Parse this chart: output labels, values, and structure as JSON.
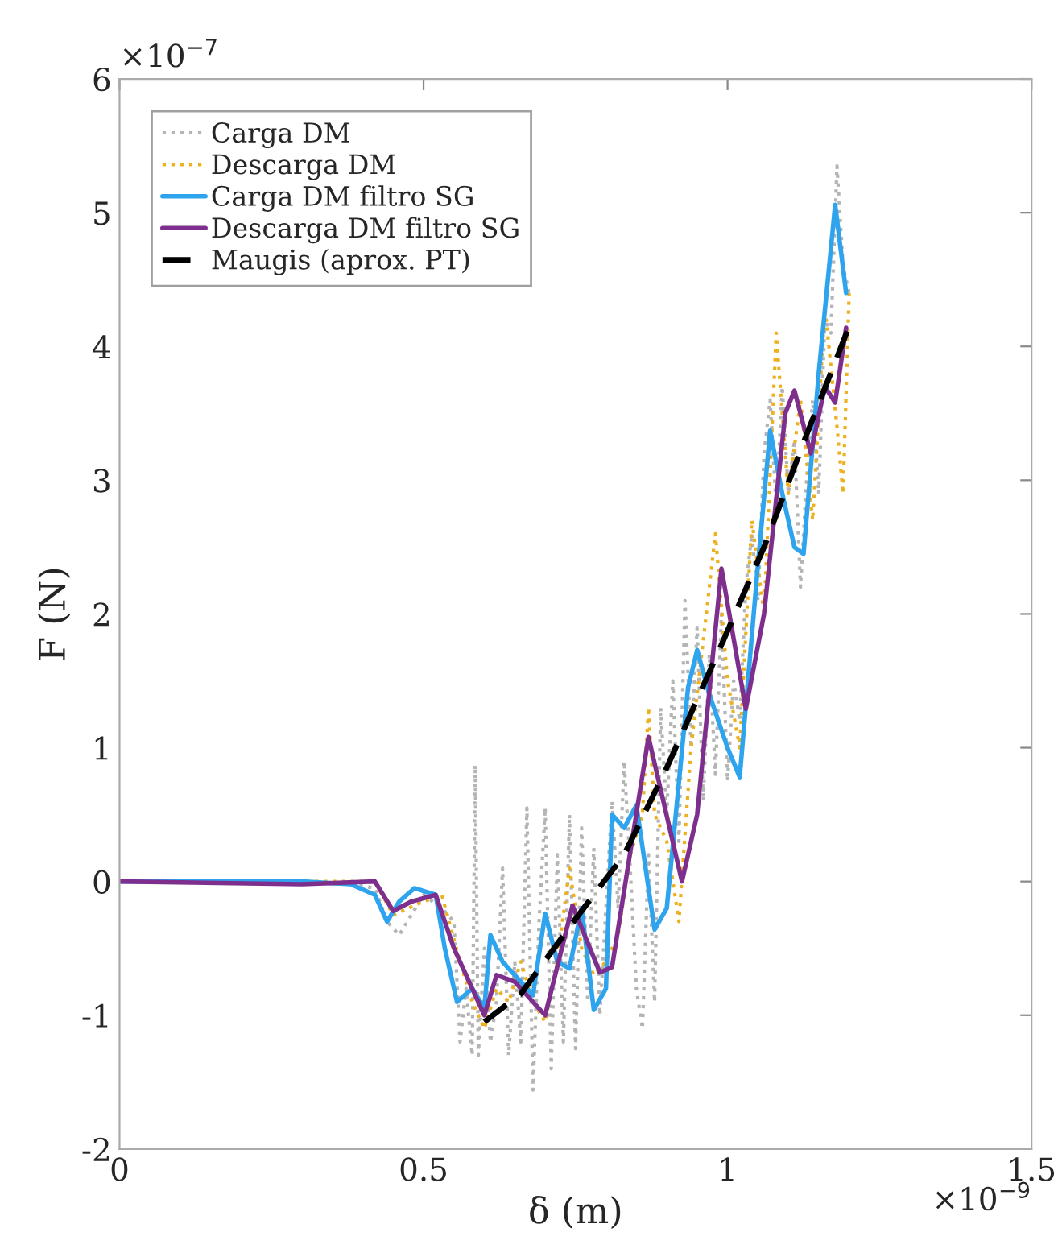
{
  "chart_data": {
    "type": "line",
    "xlabel": "δ (m)",
    "ylabel": "F (N)",
    "xlim": [
      0,
      1.5
    ],
    "xticks": [
      0,
      0.5,
      1,
      1.5
    ],
    "ylim": [
      -2,
      6
    ],
    "yticks": [
      -2,
      -1,
      0,
      1,
      2,
      3,
      4,
      5,
      6
    ],
    "grid": false,
    "legend": "top left",
    "marker": "none",
    "annotations": [
      "×10$^{−7}$",
      "×10$^{−9}$"
    ],
    "series": [
      {
        "name": "Carga DM",
        "color": "#b4b4b4",
        "line_style": "dotted",
        "x": [
          0,
          0.3,
          0.38,
          0.42,
          0.44,
          0.46,
          0.5,
          0.53,
          0.55,
          0.56,
          0.57,
          0.58,
          0.585,
          0.59,
          0.6,
          0.61,
          0.62,
          0.63,
          0.64,
          0.65,
          0.66,
          0.67,
          0.68,
          0.69,
          0.7,
          0.71,
          0.72,
          0.73,
          0.74,
          0.75,
          0.76,
          0.77,
          0.78,
          0.79,
          0.8,
          0.81,
          0.82,
          0.83,
          0.84,
          0.85,
          0.86,
          0.87,
          0.88,
          0.89,
          0.9,
          0.91,
          0.92,
          0.93,
          0.94,
          0.95,
          0.96,
          0.97,
          0.98,
          0.99,
          1.0,
          1.01,
          1.02,
          1.03,
          1.04,
          1.05,
          1.06,
          1.07,
          1.08,
          1.09,
          1.1,
          1.11,
          1.12,
          1.13,
          1.14,
          1.15,
          1.16,
          1.17,
          1.18,
          1.19,
          1.2
        ],
        "values": [
          0,
          0,
          -0.02,
          -0.05,
          -0.3,
          -0.4,
          -0.1,
          -0.2,
          -0.3,
          -1.2,
          -0.8,
          -1.3,
          0.87,
          -1.3,
          -0.5,
          -1.2,
          -0.9,
          0.1,
          -1.3,
          -0.6,
          -1.2,
          0.55,
          -1.56,
          -0.3,
          0.55,
          -1.4,
          0.2,
          -1.2,
          0.5,
          -1.25,
          0.4,
          -0.9,
          0.25,
          -1.0,
          -0.2,
          0.6,
          -0.2,
          0.9,
          0.1,
          -0.8,
          -1.1,
          0.2,
          -0.9,
          1.3,
          0.5,
          1.5,
          0.3,
          2.1,
          1.0,
          1.9,
          0.6,
          1.7,
          0.8,
          2.0,
          0.75,
          1.5,
          1.2,
          2.2,
          2.6,
          2.1,
          3.2,
          3.6,
          2.8,
          3.7,
          2.9,
          3.3,
          2.2,
          3.0,
          3.6,
          2.9,
          4.2,
          4.1,
          5.35,
          4.6,
          4.4
        ]
      },
      {
        "name": "Descarga DM",
        "color": "#edb120",
        "line_style": "dotted",
        "x": [
          0,
          0.42,
          0.45,
          0.5,
          0.53,
          0.56,
          0.58,
          0.6,
          0.62,
          0.64,
          0.66,
          0.68,
          0.7,
          0.72,
          0.74,
          0.76,
          0.78,
          0.8,
          0.82,
          0.84,
          0.86,
          0.87,
          0.88,
          0.9,
          0.92,
          0.94,
          0.96,
          0.98,
          1.0,
          1.02,
          1.04,
          1.06,
          1.08,
          1.1,
          1.12,
          1.14,
          1.16,
          1.18,
          1.19,
          1.2
        ],
        "values": [
          0,
          0,
          -0.25,
          -0.15,
          -0.1,
          -0.6,
          -0.9,
          -1.1,
          -0.8,
          -0.9,
          -0.6,
          -0.9,
          -1.05,
          -0.6,
          0.1,
          -0.5,
          -0.7,
          -0.6,
          -0.4,
          0.2,
          0.5,
          1.3,
          0.5,
          0.3,
          -0.3,
          1.0,
          1.8,
          2.6,
          1.5,
          1.0,
          2.7,
          2.0,
          4.1,
          2.9,
          3.6,
          2.7,
          4.3,
          3.4,
          2.9,
          4.4
        ]
      },
      {
        "name": "Carga DM filtro SG",
        "color": "#2ea4ee",
        "line_style": "solid",
        "x": [
          0,
          0.3,
          0.38,
          0.42,
          0.44,
          0.46,
          0.485,
          0.52,
          0.535,
          0.555,
          0.58,
          0.6,
          0.61,
          0.63,
          0.65,
          0.68,
          0.7,
          0.72,
          0.74,
          0.76,
          0.78,
          0.8,
          0.81,
          0.83,
          0.85,
          0.88,
          0.9,
          0.935,
          0.95,
          0.97,
          1.0,
          1.02,
          1.05,
          1.07,
          1.09,
          1.11,
          1.125,
          1.15,
          1.177,
          1.195
        ],
        "values": [
          0,
          0,
          -0.02,
          -0.1,
          -0.3,
          -0.15,
          -0.05,
          -0.1,
          -0.5,
          -0.9,
          -0.8,
          -0.95,
          -0.4,
          -0.6,
          -0.7,
          -0.85,
          -0.24,
          -0.6,
          -0.65,
          -0.2,
          -0.96,
          -0.8,
          0.5,
          0.4,
          0.57,
          -0.36,
          -0.2,
          1.45,
          1.73,
          1.4,
          1.0,
          0.78,
          2.37,
          3.37,
          2.9,
          2.5,
          2.45,
          3.8,
          5.06,
          4.4
        ]
      },
      {
        "name": "Descarga DM filtro SG",
        "color": "#7e2f8e",
        "line_style": "solid",
        "x": [
          0,
          0.3,
          0.42,
          0.45,
          0.48,
          0.52,
          0.55,
          0.6,
          0.62,
          0.65,
          0.7,
          0.745,
          0.79,
          0.81,
          0.87,
          0.925,
          0.95,
          0.99,
          1.03,
          1.06,
          1.095,
          1.11,
          1.137,
          1.16,
          1.177,
          1.195
        ],
        "values": [
          0,
          -0.02,
          0,
          -0.22,
          -0.15,
          -0.1,
          -0.5,
          -1.0,
          -0.7,
          -0.75,
          -1.0,
          -0.18,
          -0.68,
          -0.64,
          1.08,
          0.0,
          0.5,
          2.34,
          1.29,
          2.0,
          3.5,
          3.67,
          3.2,
          3.7,
          3.58,
          4.14
        ]
      },
      {
        "name": "Maugis (aprox. PT)",
        "color": "#000000",
        "line_style": "dashed",
        "x": [
          0.6,
          0.66,
          0.75,
          0.83,
          0.9,
          0.99,
          1.06,
          1.13,
          1.2
        ],
        "values": [
          -1.05,
          -0.84,
          -0.28,
          0.2,
          0.85,
          1.77,
          2.5,
          3.34,
          4.15
        ]
      }
    ]
  }
}
